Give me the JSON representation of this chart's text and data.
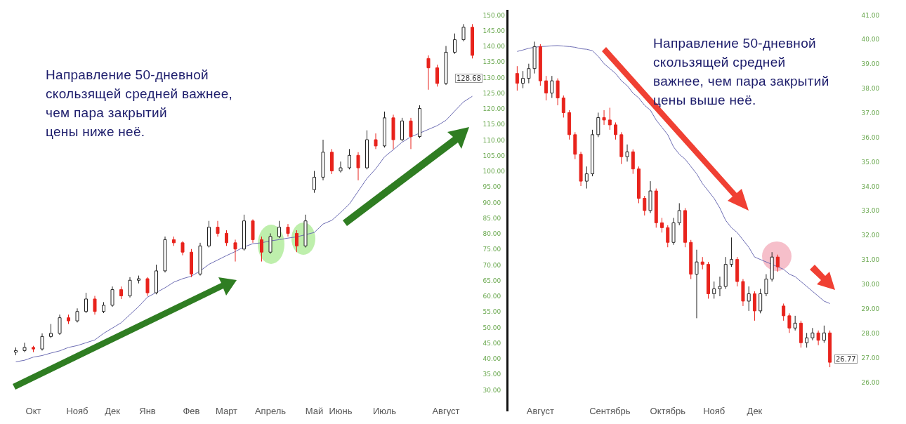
{
  "chart_data": [
    {
      "type": "candlestick",
      "categories": [
        null,
        null,
        "Окт",
        null,
        null,
        null,
        null,
        "Нояб",
        null,
        null,
        null,
        "Дек",
        null,
        null,
        null,
        "Янв",
        null,
        null,
        null,
        null,
        "Фев",
        null,
        null,
        null,
        "Март",
        null,
        null,
        null,
        null,
        "Апрель",
        null,
        null,
        null,
        null,
        "Май",
        null,
        null,
        "Июнь",
        null,
        null,
        null,
        null,
        "Июль",
        null,
        null,
        null,
        null,
        null,
        null,
        "Август",
        null,
        null,
        null
      ],
      "ohlc": [
        [
          42,
          43.5,
          41,
          42.5
        ],
        [
          42.5,
          45,
          42,
          43.5
        ],
        [
          43.5,
          44,
          42,
          43
        ],
        [
          43,
          48,
          42.5,
          47
        ],
        [
          47,
          51,
          46.5,
          48
        ],
        [
          48,
          54,
          47.5,
          53
        ],
        [
          53,
          54,
          51,
          52
        ],
        [
          52,
          56,
          51.5,
          55
        ],
        [
          55,
          61,
          54.5,
          59
        ],
        [
          59,
          60,
          54,
          55
        ],
        [
          55,
          58,
          54.5,
          57
        ],
        [
          57,
          63,
          56.5,
          62
        ],
        [
          62,
          63,
          59,
          60
        ],
        [
          60,
          66,
          59.5,
          65
        ],
        [
          65,
          66.5,
          64,
          65.5
        ],
        [
          65.5,
          66,
          60,
          61
        ],
        [
          61,
          70,
          60.5,
          68
        ],
        [
          68,
          79,
          67.5,
          78
        ],
        [
          78,
          79,
          76,
          77
        ],
        [
          77,
          77.5,
          73,
          74
        ],
        [
          74,
          75,
          66,
          67
        ],
        [
          67,
          77,
          66.5,
          76
        ],
        [
          76,
          84,
          75.5,
          82
        ],
        [
          82,
          84,
          79,
          80
        ],
        [
          80,
          81,
          76,
          77
        ],
        [
          77,
          78,
          71,
          75
        ],
        [
          75,
          86,
          74.5,
          84
        ],
        [
          84,
          84.5,
          77,
          78
        ],
        [
          78,
          79,
          71,
          74
        ],
        [
          74,
          80,
          73.5,
          79
        ],
        [
          79,
          84,
          78.5,
          82
        ],
        [
          82,
          83,
          79,
          80
        ],
        [
          80,
          81,
          74,
          76
        ],
        [
          76,
          86,
          75.5,
          84
        ],
        [
          94,
          100,
          93,
          98
        ],
        [
          98,
          110,
          97,
          106
        ],
        [
          106,
          107,
          99,
          100
        ],
        [
          100,
          103,
          99.5,
          101
        ],
        [
          101,
          107,
          100.5,
          105
        ],
        [
          105,
          106,
          97,
          101
        ],
        [
          101,
          113,
          100.5,
          110
        ],
        [
          110,
          112,
          107,
          108
        ],
        [
          108,
          119,
          107.5,
          117
        ],
        [
          117,
          118,
          107,
          110
        ],
        [
          110,
          117,
          109.5,
          116
        ],
        [
          116,
          117,
          107,
          111
        ],
        [
          111,
          121,
          110.5,
          120
        ],
        [
          136,
          137,
          126,
          133
        ],
        [
          133,
          134,
          127,
          128
        ],
        [
          128,
          140,
          127.5,
          138
        ],
        [
          138,
          144,
          137.5,
          142
        ],
        [
          142,
          147,
          141.5,
          146
        ],
        [
          146,
          147,
          136,
          137
        ]
      ],
      "colors": [
        "#222222",
        "#222222",
        "#e8231c",
        "#222222",
        "#222222",
        "#222222",
        "#e8231c",
        "#222222",
        "#222222",
        "#e8231c",
        "#222222",
        "#222222",
        "#e8231c",
        "#222222",
        "#222222",
        "#e8231c",
        "#222222",
        "#222222",
        "#e8231c",
        "#e8231c",
        "#e8231c",
        "#222222",
        "#222222",
        "#e8231c",
        "#e8231c",
        "#e8231c",
        "#222222",
        "#e8231c",
        "#e8231c",
        "#222222",
        "#222222",
        "#e8231c",
        "#e8231c",
        "#222222",
        "#222222",
        "#222222",
        "#e8231c",
        "#222222",
        "#222222",
        "#e8231c",
        "#222222",
        "#e8231c",
        "#222222",
        "#e8231c",
        "#222222",
        "#e8231c",
        "#222222",
        "#e8231c",
        "#e8231c",
        "#222222",
        "#222222",
        "#222222",
        "#e8231c"
      ],
      "series": [
        {
          "type": "line",
          "color": "#6e6eb4",
          "values": [
            38.9,
            39.4,
            40.4,
            40.9,
            41.7,
            42.4,
            43.5,
            44.1,
            45,
            45.9,
            48,
            49.7,
            51.4,
            54,
            56.6,
            59.6,
            61.1,
            62.6,
            64.4,
            65.5,
            66.3,
            68,
            70.1,
            71.5,
            72.9,
            74.2,
            75.7,
            76.7,
            77,
            77.6,
            78,
            78.5,
            78.9,
            79.6,
            80.3,
            83,
            84.2,
            86.7,
            89.4,
            93.5,
            97.6,
            100.7,
            104.5,
            106.8,
            109.2,
            110.9,
            112.1,
            113.3,
            114.5,
            116.2,
            119.2,
            122.1,
            123.9
          ]
        }
      ],
      "ylim": [
        30,
        150
      ],
      "yticks": [
        {
          "value": 30,
          "label": "30.00"
        },
        {
          "value": 35,
          "label": "35.00"
        },
        {
          "value": 40,
          "label": "40.00"
        },
        {
          "value": 45,
          "label": "45.00"
        },
        {
          "value": 50,
          "label": "50.00"
        },
        {
          "value": 55,
          "label": "55.00"
        },
        {
          "value": 60,
          "label": "60.00"
        },
        {
          "value": 65,
          "label": "65.00"
        },
        {
          "value": 70,
          "label": "70.00"
        },
        {
          "value": 75,
          "label": "75.00"
        },
        {
          "value": 80,
          "label": "80.00"
        },
        {
          "value": 85,
          "label": "85.00"
        },
        {
          "value": 90,
          "label": "90.00"
        },
        {
          "value": 95,
          "label": "95.00"
        },
        {
          "value": 100,
          "label": "100.00"
        },
        {
          "value": 105,
          "label": "105.00"
        },
        {
          "value": 110,
          "label": "110.00"
        },
        {
          "value": 115,
          "label": "115.00"
        },
        {
          "value": 120,
          "label": "120.00"
        },
        {
          "value": 125,
          "label": "125.00"
        },
        {
          "value": 130,
          "label": "130.00"
        },
        {
          "value": 135,
          "label": "135.00"
        },
        {
          "value": 140,
          "label": "140.00"
        },
        {
          "value": 145,
          "label": "145.00"
        },
        {
          "value": 150,
          "label": "150.00"
        }
      ],
      "annotations": [
        "Направление 50-дневной\nскользящей средней важнее,\nчем пара закрытий\nцены ниже неё.",
        "128.68"
      ]
    },
    {
      "type": "candlestick",
      "categories": [
        null,
        null,
        null,
        null,
        "Август",
        null,
        null,
        null,
        null,
        null,
        null,
        null,
        null,
        null,
        null,
        null,
        "Сентябрь",
        null,
        null,
        null,
        null,
        null,
        null,
        null,
        null,
        null,
        "Октябрь",
        null,
        null,
        null,
        null,
        null,
        null,
        null,
        "Нояб",
        null,
        null,
        null,
        null,
        null,
        null,
        "Дек",
        null,
        null,
        null,
        null,
        null,
        null,
        null,
        null,
        null,
        null,
        null,
        null,
        null
      ],
      "ohlc": [
        [
          38.6,
          38.9,
          37.9,
          38.2
        ],
        [
          38.2,
          38.7,
          38,
          38.4
        ],
        [
          38.4,
          39,
          38.2,
          38.8
        ],
        [
          38.8,
          39.9,
          38.6,
          39.7
        ],
        [
          39.7,
          39.8,
          38.1,
          38.3
        ],
        [
          38.3,
          38.5,
          37.5,
          37.8
        ],
        [
          37.8,
          38.5,
          37.6,
          38.3
        ],
        [
          38.3,
          38.4,
          37.3,
          37.6
        ],
        [
          37.6,
          37.7,
          36.8,
          37
        ],
        [
          37,
          37.1,
          35.9,
          36.1
        ],
        [
          36.1,
          36.2,
          35.1,
          35.3
        ],
        [
          35.3,
          35.4,
          34,
          34.2
        ],
        [
          34.2,
          34.8,
          33.9,
          34.5
        ],
        [
          34.5,
          36.3,
          34.4,
          36.1
        ],
        [
          36.1,
          37,
          36,
          36.8
        ],
        [
          36.8,
          37.1,
          36.5,
          36.7
        ],
        [
          36.7,
          37.2,
          36.3,
          36.5
        ],
        [
          36.5,
          36.6,
          35.9,
          36.1
        ],
        [
          36.1,
          36.2,
          34.9,
          35.2
        ],
        [
          35.2,
          35.7,
          35,
          35.4
        ],
        [
          35.4,
          35.5,
          34.5,
          34.7
        ],
        [
          34.7,
          34.8,
          33.3,
          33.5
        ],
        [
          33.5,
          33.6,
          32.8,
          33
        ],
        [
          33,
          34.2,
          32.9,
          33.8
        ],
        [
          33.8,
          33.9,
          32.3,
          32.5
        ],
        [
          32.5,
          32.7,
          32.1,
          32.3
        ],
        [
          32.3,
          32.4,
          31.5,
          31.7
        ],
        [
          31.7,
          32.7,
          31.6,
          32.5
        ],
        [
          32.5,
          33.3,
          32.4,
          33
        ],
        [
          33,
          33.1,
          31.5,
          31.7
        ],
        [
          31.7,
          31.8,
          30.2,
          30.4
        ],
        [
          30.4,
          31.4,
          28.6,
          30.9
        ],
        [
          30.9,
          31.1,
          30.6,
          30.8
        ],
        [
          30.8,
          30.9,
          29.4,
          29.6
        ],
        [
          29.6,
          30.1,
          29.4,
          29.8
        ],
        [
          29.8,
          30.3,
          29.5,
          29.9
        ],
        [
          29.9,
          31.1,
          29.8,
          30.8
        ],
        [
          30.8,
          31.9,
          30.7,
          31
        ],
        [
          31,
          31.1,
          29.9,
          30.1
        ],
        [
          30.1,
          30.2,
          29.1,
          29.3
        ],
        [
          29.3,
          29.9,
          28.9,
          29.6
        ],
        [
          29.6,
          29.7,
          28.5,
          28.9
        ],
        [
          28.9,
          29.8,
          28.8,
          29.6
        ],
        [
          29.6,
          30.4,
          29.5,
          30.2
        ],
        [
          30.2,
          31.3,
          30.1,
          31.1
        ],
        [
          31.1,
          31.2,
          30.5,
          30.7
        ],
        [
          29.1,
          29.2,
          28.5,
          28.7
        ],
        [
          28.7,
          28.8,
          28,
          28.2
        ],
        [
          28.2,
          28.7,
          28.1,
          28.4
        ],
        [
          28.4,
          28.5,
          27.4,
          27.6
        ],
        [
          27.6,
          28,
          27.4,
          27.8
        ],
        [
          27.8,
          28.2,
          27.7,
          28
        ],
        [
          28,
          28.1,
          27.5,
          27.7
        ],
        [
          27.7,
          28.3,
          27.6,
          28
        ],
        [
          28,
          28.1,
          26.6,
          26.8
        ]
      ],
      "colors": [
        "#e8231c",
        "#222222",
        "#222222",
        "#222222",
        "#e8231c",
        "#e8231c",
        "#222222",
        "#e8231c",
        "#e8231c",
        "#e8231c",
        "#e8231c",
        "#e8231c",
        "#222222",
        "#222222",
        "#222222",
        "#e8231c",
        "#e8231c",
        "#e8231c",
        "#e8231c",
        "#222222",
        "#e8231c",
        "#e8231c",
        "#e8231c",
        "#222222",
        "#e8231c",
        "#e8231c",
        "#e8231c",
        "#222222",
        "#222222",
        "#e8231c",
        "#e8231c",
        "#222222",
        "#e8231c",
        "#e8231c",
        "#222222",
        "#222222",
        "#222222",
        "#222222",
        "#e8231c",
        "#e8231c",
        "#222222",
        "#e8231c",
        "#222222",
        "#222222",
        "#222222",
        "#e8231c",
        "#e8231c",
        "#e8231c",
        "#222222",
        "#e8231c",
        "#222222",
        "#222222",
        "#e8231c",
        "#222222",
        "#e8231c"
      ],
      "series": [
        {
          "type": "line",
          "color": "#6e6eb4",
          "values": [
            39.5,
            39.56,
            39.63,
            39.67,
            39.7,
            39.71,
            39.73,
            39.74,
            39.72,
            39.7,
            39.67,
            39.61,
            39.59,
            39.53,
            39.3,
            39,
            38.8,
            38.6,
            38.3,
            38.1,
            37.8,
            37.6,
            37.3,
            37.1,
            36.7,
            36.4,
            36.1,
            35.6,
            35.3,
            35.1,
            34.8,
            34.5,
            34.1,
            33.8,
            33.5,
            33.1,
            32.6,
            32.3,
            32.1,
            31.8,
            31.5,
            31.1,
            31,
            30.9,
            30.8,
            30.7,
            30.6,
            30.4,
            30.3,
            30.1,
            29.9,
            29.7,
            29.5,
            29.3,
            29.2
          ]
        }
      ],
      "ylim": [
        26,
        41
      ],
      "yticks": [
        {
          "value": 26,
          "label": "26.00"
        },
        {
          "value": 27,
          "label": "27.00"
        },
        {
          "value": 28,
          "label": "28.00"
        },
        {
          "value": 29,
          "label": "29.00"
        },
        {
          "value": 30,
          "label": "30.00"
        },
        {
          "value": 31,
          "label": "31.00"
        },
        {
          "value": 32,
          "label": "32.00"
        },
        {
          "value": 33,
          "label": "33.00"
        },
        {
          "value": 34,
          "label": "34.00"
        },
        {
          "value": 35,
          "label": "35.00"
        },
        {
          "value": 36,
          "label": "36.00"
        },
        {
          "value": 37,
          "label": "37.00"
        },
        {
          "value": 38,
          "label": "38.00"
        },
        {
          "value": 39,
          "label": "39.00"
        },
        {
          "value": 40,
          "label": "40.00"
        },
        {
          "value": 41,
          "label": "41.00"
        }
      ],
      "annotations": [
        "Направление 50-дневной\nскользящей средней\nважнее, чем пара закрытий\nцены выше неё.",
        "26.77"
      ]
    }
  ]
}
